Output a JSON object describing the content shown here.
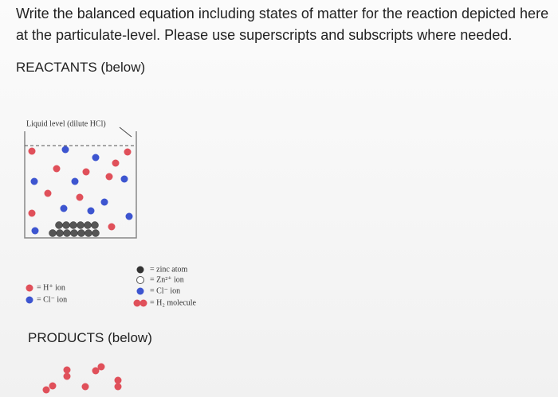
{
  "question": {
    "text": "Write the balanced equation including states of matter for the reaction depicted here at the particulate-level. Please use superscripts and subscripts where needed."
  },
  "reactants": {
    "heading": "REACTANTS (below)",
    "liquid_label": "Liquid level (dilute HCl)",
    "legend_left": [
      "= H⁺ ion",
      "= Cl⁻ ion"
    ],
    "legend_right": [
      "= zinc atom",
      "= Zn²⁺ ion",
      "= Cl⁻ ion",
      "= H₂ molecule"
    ]
  },
  "products": {
    "heading": "PRODUCTS (below)"
  }
}
